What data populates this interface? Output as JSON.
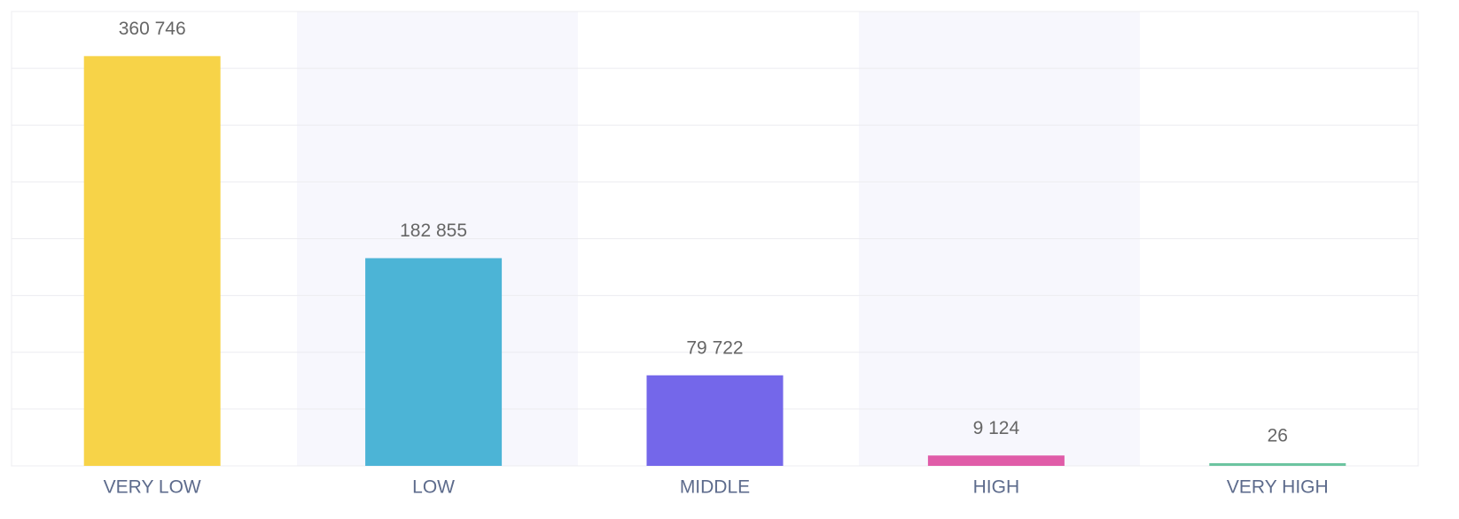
{
  "chart_data": {
    "type": "bar",
    "categories": [
      "VERY LOW",
      "LOW",
      "MIDDLE",
      "HIGH",
      "VERY HIGH"
    ],
    "values": [
      360746,
      182855,
      79722,
      9124,
      26
    ],
    "value_labels": [
      "360 746",
      "182 855",
      "79 722",
      "9 124",
      "26"
    ],
    "colors": [
      "#f7d348",
      "#4cb4d6",
      "#7467ea",
      "#e05ca8",
      "#6cc4a0"
    ],
    "ylim": [
      0,
      400000
    ],
    "yticks": [
      0,
      50000,
      100000,
      150000,
      200000,
      250000,
      300000,
      350000,
      400000
    ],
    "grid": true
  }
}
